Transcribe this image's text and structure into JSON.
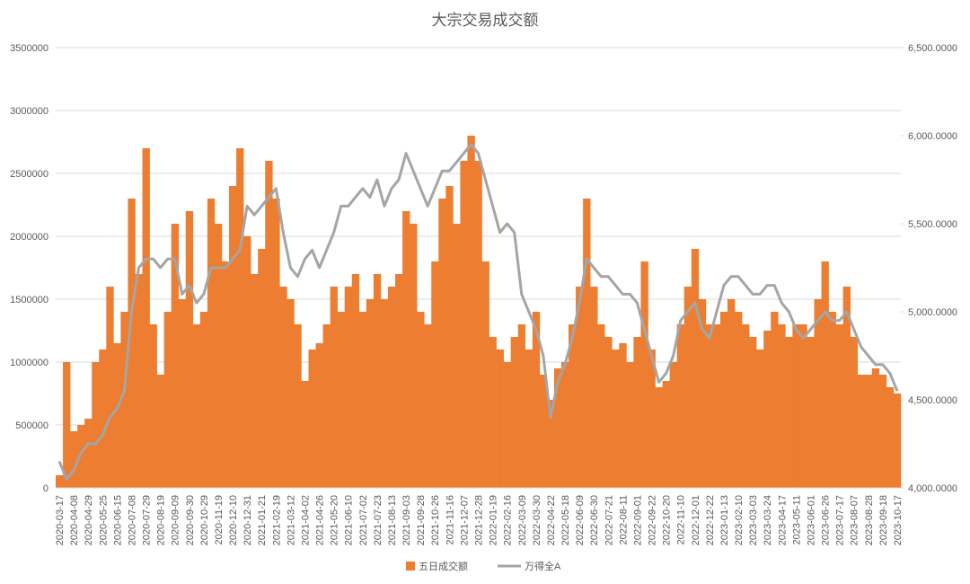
{
  "chart_data": {
    "type": "bar",
    "title": "大宗交易成交额",
    "categories": [
      "2020-03-17",
      null,
      "2020-04-08",
      null,
      "2020-04-29",
      null,
      "2020-05-25",
      null,
      "2020-06-15",
      null,
      "2020-07-08",
      null,
      "2020-07-29",
      null,
      "2020-08-19",
      null,
      "2020-09-09",
      null,
      "2020-09-30",
      null,
      "2020-10-29",
      null,
      "2020-11-19",
      null,
      "2020-12-10",
      null,
      "2020-12-31",
      null,
      "2021-01-21",
      null,
      "2021-02-19",
      null,
      "2021-03-12",
      null,
      "2021-04-02",
      null,
      "2021-04-26",
      null,
      "2021-05-20",
      null,
      "2021-06-10",
      null,
      "2021-07-02",
      null,
      "2021-07-23",
      null,
      "2021-08-13",
      null,
      "2021-09-03",
      null,
      "2021-09-28",
      null,
      "2021-10-26",
      null,
      "2021-11-16",
      null,
      "2021-12-07",
      null,
      "2021-12-28",
      null,
      "2022-01-19",
      null,
      "2022-02-16",
      null,
      "2022-03-09",
      null,
      "2022-03-30",
      null,
      "2022-04-22",
      null,
      "2022-05-18",
      null,
      "2022-06-09",
      null,
      "2022-06-30",
      null,
      "2022-07-21",
      null,
      "2022-08-11",
      null,
      "2022-09-01",
      null,
      "2022-09-22",
      null,
      "2022-10-20",
      null,
      "2022-11-10",
      null,
      "2022-12-01",
      null,
      "2022-12-22",
      null,
      "2023-01-13",
      null,
      "2023-02-10",
      null,
      "2023-03-03",
      null,
      "2023-03-24",
      null,
      "2023-04-17",
      null,
      "2023-05-11",
      null,
      "2023-06-01",
      null,
      "2023-06-26",
      null,
      "2023-07-17",
      null,
      "2023-08-07",
      null,
      "2023-08-28",
      null,
      "2023-09-18",
      null,
      "2023-10-17"
    ],
    "series": [
      {
        "name": "五日成交额",
        "color": "#ed7d31",
        "type": "bar",
        "values": [
          100000,
          1000000,
          450000,
          500000,
          550000,
          1000000,
          1100000,
          1600000,
          1150000,
          1400000,
          2300000,
          1700000,
          2700000,
          1300000,
          900000,
          1400000,
          2100000,
          1500000,
          2200000,
          1300000,
          1400000,
          2300000,
          2100000,
          1800000,
          2400000,
          2700000,
          2000000,
          1700000,
          1900000,
          2600000,
          2300000,
          1600000,
          1500000,
          1300000,
          850000,
          1100000,
          1150000,
          1300000,
          1600000,
          1400000,
          1600000,
          1700000,
          1400000,
          1500000,
          1700000,
          1500000,
          1600000,
          1700000,
          2200000,
          2100000,
          1400000,
          1300000,
          1800000,
          2300000,
          2400000,
          2100000,
          2600000,
          2800000,
          2600000,
          1800000,
          1200000,
          1100000,
          1000000,
          1200000,
          1300000,
          1100000,
          1400000,
          900000,
          700000,
          950000,
          1000000,
          1300000,
          1600000,
          2300000,
          1600000,
          1300000,
          1200000,
          1100000,
          1150000,
          1000000,
          1200000,
          1800000,
          1100000,
          800000,
          850000,
          1000000,
          1300000,
          1600000,
          1900000,
          1500000,
          1300000,
          1300000,
          1400000,
          1500000,
          1400000,
          1300000,
          1200000,
          1100000,
          1250000,
          1400000,
          1300000,
          1200000,
          1300000,
          1300000,
          1200000,
          1500000,
          1800000,
          1400000,
          1300000,
          1600000,
          1200000,
          900000,
          900000,
          950000,
          900000,
          800000,
          750000
        ]
      },
      {
        "name": "万得全A",
        "color": "#a5a5a5",
        "type": "line",
        "axis": "y2",
        "values": [
          4150,
          4050,
          4100,
          4200,
          4250,
          4250,
          4300,
          4400,
          4450,
          4550,
          5000,
          5250,
          5300,
          5300,
          5250,
          5300,
          5300,
          5100,
          5150,
          5050,
          5100,
          5250,
          5250,
          5250,
          5300,
          5350,
          5600,
          5550,
          5600,
          5650,
          5700,
          5450,
          5250,
          5200,
          5300,
          5350,
          5250,
          5350,
          5450,
          5600,
          5600,
          5650,
          5700,
          5650,
          5750,
          5600,
          5700,
          5750,
          5900,
          5800,
          5700,
          5600,
          5700,
          5800,
          5800,
          5850,
          5900,
          5950,
          5900,
          5750,
          5600,
          5450,
          5500,
          5450,
          5100,
          5000,
          4900,
          4750,
          4400,
          4600,
          4700,
          4850,
          5050,
          5300,
          5250,
          5200,
          5200,
          5150,
          5100,
          5100,
          5050,
          4900,
          4750,
          4600,
          4650,
          4750,
          4950,
          5000,
          5050,
          4900,
          4850,
          5000,
          5150,
          5200,
          5200,
          5150,
          5100,
          5100,
          5150,
          5150,
          5050,
          5000,
          4900,
          4850,
          4900,
          4950,
          5000,
          4950,
          4950,
          5000,
          4900,
          4800,
          4750,
          4700,
          4700,
          4650,
          4550
        ]
      }
    ],
    "ylim": [
      0,
      3500000
    ],
    "yticks": [
      0,
      500000,
      1000000,
      1500000,
      2000000,
      2500000,
      3000000,
      3500000
    ],
    "y2lim": [
      4000,
      6500
    ],
    "y2ticks": [
      {
        "value": 4000,
        "label": "4,000.0000"
      },
      {
        "value": 4500,
        "label": "4,500.0000"
      },
      {
        "value": 5000,
        "label": "5,000.0000"
      },
      {
        "value": 5500,
        "label": "5,500.0000"
      },
      {
        "value": 6000,
        "label": "6,000.0000"
      },
      {
        "value": 6500,
        "label": "6,500.0000"
      }
    ],
    "grid": true
  }
}
